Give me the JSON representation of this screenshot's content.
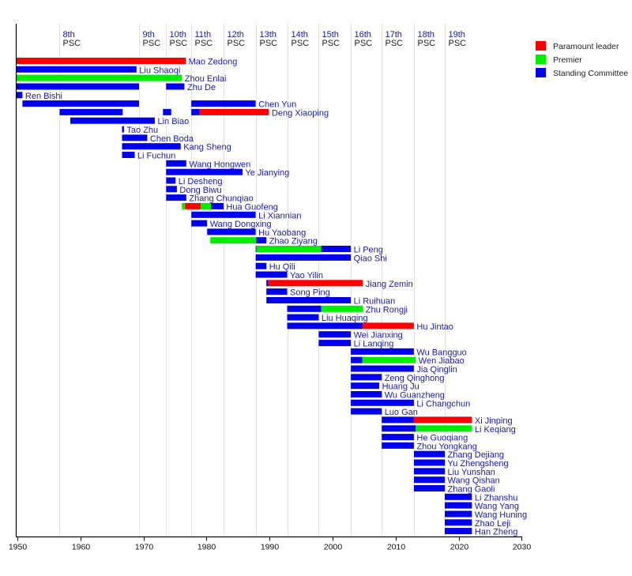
{
  "chart_data": {
    "type": "bar",
    "subtype": "timeline-gantt",
    "title": "",
    "xlabel": "",
    "ylabel": "",
    "xlim": [
      1950,
      2030
    ],
    "x_ticks": [
      1950,
      1960,
      1970,
      1980,
      1990,
      2000,
      2010,
      2020,
      2030
    ],
    "grid": true,
    "legend_position": "top-right",
    "colors": {
      "paramount": "#ff0000",
      "premier": "#00ee00",
      "committee": "#0000ee"
    },
    "legend": [
      {
        "key": "paramount",
        "label": "Paramount leader"
      },
      {
        "key": "premier",
        "label": "Premier"
      },
      {
        "key": "committee",
        "label": "Standing Committee"
      }
    ],
    "congresses": [
      {
        "num": "8th",
        "word": "PSC",
        "year": 1956.7
      },
      {
        "num": "9th",
        "word": "PSC",
        "year": 1969.3
      },
      {
        "num": "10th",
        "word": "PSC",
        "year": 1973.6
      },
      {
        "num": "11th",
        "word": "PSC",
        "year": 1977.6
      },
      {
        "num": "12th",
        "word": "PSC",
        "year": 1982.7
      },
      {
        "num": "13th",
        "word": "PSC",
        "year": 1987.8
      },
      {
        "num": "14th",
        "word": "PSC",
        "year": 1992.8
      },
      {
        "num": "15th",
        "word": "PSC",
        "year": 1997.8
      },
      {
        "num": "16th",
        "word": "PSC",
        "year": 2002.9
      },
      {
        "num": "17th",
        "word": "PSC",
        "year": 2007.8
      },
      {
        "num": "18th",
        "word": "PSC",
        "year": 2012.9
      },
      {
        "num": "19th",
        "word": "PSC",
        "year": 2017.8
      }
    ],
    "members": [
      {
        "name": "Mao Zedong",
        "segments": [
          [
            1949.8,
            1976.7,
            "paramount"
          ]
        ]
      },
      {
        "name": "Liu Shaoqi",
        "segments": [
          [
            1949.8,
            1968.9,
            "committee"
          ]
        ]
      },
      {
        "name": "Zhou Enlai",
        "segments": [
          [
            1949.8,
            1976.1,
            "premier"
          ]
        ]
      },
      {
        "name": "Zhu De",
        "segments": [
          [
            1949.8,
            1969.3,
            "committee"
          ],
          [
            1973.6,
            1976.5,
            "committee"
          ]
        ]
      },
      {
        "name": "Ren Bishi",
        "segments": [
          [
            1949.8,
            1950.8,
            "committee"
          ]
        ]
      },
      {
        "name": "Chen Yun",
        "segments": [
          [
            1950.8,
            1969.3,
            "committee"
          ],
          [
            1977.6,
            1987.8,
            "committee"
          ]
        ]
      },
      {
        "name": "Deng Xiaoping",
        "segments": [
          [
            1956.7,
            1966.7,
            "committee"
          ],
          [
            1973.1,
            1974.4,
            "committee"
          ],
          [
            1977.6,
            1978.9,
            "committee"
          ],
          [
            1978.9,
            1989.9,
            "paramount"
          ]
        ]
      },
      {
        "name": "Lin Biao",
        "segments": [
          [
            1958.4,
            1971.8,
            "committee"
          ]
        ]
      },
      {
        "name": "Tao Zhu",
        "segments": [
          [
            1966.6,
            1966.9,
            "committee"
          ]
        ]
      },
      {
        "name": "Chen Boda",
        "segments": [
          [
            1966.6,
            1970.6,
            "committee"
          ]
        ]
      },
      {
        "name": "Kang Sheng",
        "segments": [
          [
            1966.6,
            1975.9,
            "committee"
          ]
        ]
      },
      {
        "name": "Li Fuchun",
        "segments": [
          [
            1966.6,
            1968.6,
            "committee"
          ]
        ]
      },
      {
        "name": "Wang Hongwen",
        "segments": [
          [
            1973.6,
            1976.8,
            "committee"
          ]
        ]
      },
      {
        "name": "Ye Jianying",
        "segments": [
          [
            1973.6,
            1985.7,
            "committee"
          ]
        ]
      },
      {
        "name": "Li Desheng",
        "segments": [
          [
            1973.6,
            1975.1,
            "committee"
          ]
        ]
      },
      {
        "name": "Dong Biwu",
        "segments": [
          [
            1973.6,
            1975.3,
            "committee"
          ]
        ]
      },
      {
        "name": "Zhang Chunqiao",
        "segments": [
          [
            1973.6,
            1976.8,
            "committee"
          ]
        ]
      },
      {
        "name": "Hua Guofeng",
        "segments": [
          [
            1976.1,
            1976.6,
            "premier"
          ],
          [
            1976.6,
            1979.1,
            "paramount"
          ],
          [
            1979.1,
            1980.7,
            "premier"
          ],
          [
            1980.7,
            1982.7,
            "committee"
          ]
        ]
      },
      {
        "name": "Li Xiannian",
        "segments": [
          [
            1977.6,
            1987.8,
            "committee"
          ]
        ]
      },
      {
        "name": "Wang Dongxing",
        "segments": [
          [
            1977.6,
            1980.1,
            "committee"
          ]
        ]
      },
      {
        "name": "Hu Yaobang",
        "segments": [
          [
            1980.1,
            1987.8,
            "committee"
          ]
        ]
      },
      {
        "name": "Zhao Ziyang",
        "segments": [
          [
            1980.6,
            1987.9,
            "premier"
          ],
          [
            1987.9,
            1989.5,
            "committee"
          ]
        ]
      },
      {
        "name": "Li Peng",
        "segments": [
          [
            1987.8,
            1987.9,
            "committee"
          ],
          [
            1987.9,
            1998.2,
            "premier"
          ],
          [
            1998.2,
            2002.9,
            "committee"
          ]
        ]
      },
      {
        "name": "Qiao Shi",
        "segments": [
          [
            1987.8,
            2002.9,
            "committee"
          ]
        ]
      },
      {
        "name": "Hu Qili",
        "segments": [
          [
            1987.8,
            1989.5,
            "committee"
          ]
        ]
      },
      {
        "name": "Yao Yilin",
        "segments": [
          [
            1987.8,
            1992.8,
            "committee"
          ]
        ]
      },
      {
        "name": "Jiang Zemin",
        "segments": [
          [
            1989.5,
            1989.8,
            "committee"
          ],
          [
            1989.8,
            2004.8,
            "paramount"
          ]
        ]
      },
      {
        "name": "Song Ping",
        "segments": [
          [
            1989.5,
            1992.8,
            "committee"
          ]
        ]
      },
      {
        "name": "Li Ruihuan",
        "segments": [
          [
            1989.5,
            2002.9,
            "committee"
          ]
        ]
      },
      {
        "name": "Zhu Rongji",
        "segments": [
          [
            1992.8,
            1998.2,
            "committee"
          ],
          [
            1998.2,
            2004.8,
            "premier"
          ]
        ]
      },
      {
        "name": "Liu Huaqing",
        "segments": [
          [
            1992.8,
            1997.8,
            "committee"
          ]
        ]
      },
      {
        "name": "Hu Jintao",
        "segments": [
          [
            1992.8,
            2004.7,
            "committee"
          ],
          [
            2004.7,
            2012.9,
            "paramount"
          ]
        ]
      },
      {
        "name": "Wei Jianxing",
        "segments": [
          [
            1997.8,
            2002.9,
            "committee"
          ]
        ]
      },
      {
        "name": "Li Lanqing",
        "segments": [
          [
            1997.8,
            2002.9,
            "committee"
          ]
        ]
      },
      {
        "name": "Wu Bangguo",
        "segments": [
          [
            2002.9,
            2012.9,
            "committee"
          ]
        ]
      },
      {
        "name": "Wen Jiabao",
        "segments": [
          [
            2002.9,
            2004.7,
            "committee"
          ],
          [
            2004.7,
            2013.2,
            "premier"
          ]
        ]
      },
      {
        "name": "Jia Qinglin",
        "segments": [
          [
            2002.9,
            2012.9,
            "committee"
          ]
        ]
      },
      {
        "name": "Zeng Qinghong",
        "segments": [
          [
            2002.9,
            2007.8,
            "committee"
          ]
        ]
      },
      {
        "name": "Huang Ju",
        "segments": [
          [
            2002.9,
            2007.4,
            "committee"
          ]
        ]
      },
      {
        "name": "Wu Guanzheng",
        "segments": [
          [
            2002.9,
            2007.8,
            "committee"
          ]
        ]
      },
      {
        "name": "Li Changchun",
        "segments": [
          [
            2002.9,
            2012.9,
            "committee"
          ]
        ]
      },
      {
        "name": "Luo Gan",
        "segments": [
          [
            2002.9,
            2007.8,
            "committee"
          ]
        ]
      },
      {
        "name": "Xi Jinping",
        "segments": [
          [
            2007.8,
            2012.9,
            "committee"
          ],
          [
            2012.9,
            2022.1,
            "paramount"
          ]
        ]
      },
      {
        "name": "Li Keqiang",
        "segments": [
          [
            2007.8,
            2013.2,
            "committee"
          ],
          [
            2013.2,
            2022.1,
            "premier"
          ]
        ]
      },
      {
        "name": "He Guoqiang",
        "segments": [
          [
            2007.8,
            2012.9,
            "committee"
          ]
        ]
      },
      {
        "name": "Zhou Yongkang",
        "segments": [
          [
            2007.8,
            2012.9,
            "committee"
          ]
        ]
      },
      {
        "name": "Zhang Dejiang",
        "segments": [
          [
            2012.9,
            2017.8,
            "committee"
          ]
        ]
      },
      {
        "name": "Yu Zhengsheng",
        "segments": [
          [
            2012.9,
            2017.8,
            "committee"
          ]
        ]
      },
      {
        "name": "Liu Yunshan",
        "segments": [
          [
            2012.9,
            2017.8,
            "committee"
          ]
        ]
      },
      {
        "name": "Wang Qishan",
        "segments": [
          [
            2012.9,
            2017.8,
            "committee"
          ]
        ]
      },
      {
        "name": "Zhang Gaoli",
        "segments": [
          [
            2012.9,
            2017.8,
            "committee"
          ]
        ]
      },
      {
        "name": "Li Zhanshu",
        "segments": [
          [
            2017.8,
            2022.1,
            "committee"
          ]
        ]
      },
      {
        "name": "Wang Yang",
        "segments": [
          [
            2017.8,
            2022.1,
            "committee"
          ]
        ]
      },
      {
        "name": "Wang Huning",
        "segments": [
          [
            2017.8,
            2022.1,
            "committee"
          ]
        ]
      },
      {
        "name": "Zhao Leji",
        "segments": [
          [
            2017.8,
            2022.1,
            "committee"
          ]
        ]
      },
      {
        "name": "Han Zheng",
        "segments": [
          [
            2017.8,
            2022.1,
            "committee"
          ]
        ]
      }
    ]
  }
}
